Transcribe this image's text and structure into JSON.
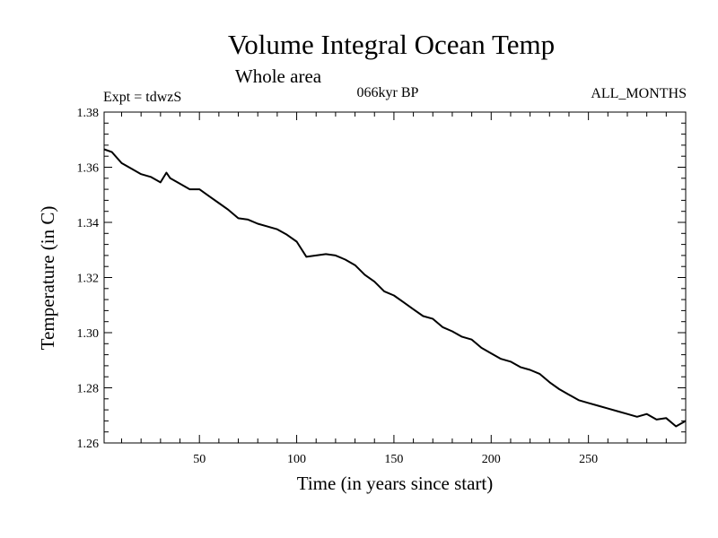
{
  "chart_data": {
    "type": "line",
    "title": "Volume Integral Ocean Temp",
    "subtitle": "Whole area",
    "annotations": {
      "left": "Expt = tdwzS",
      "center": "066kyr BP",
      "right": "ALL_MONTHS"
    },
    "xlabel": "Time (in years since start)",
    "ylabel": "Temperature (in C)",
    "xlim": [
      1,
      300
    ],
    "ylim": [
      1.26,
      1.38
    ],
    "x_ticks": [
      50,
      100,
      150,
      200,
      250
    ],
    "y_ticks": [
      "1.26",
      "1.28",
      "1.30",
      "1.32",
      "1.34",
      "1.36",
      "1.38"
    ],
    "grid": false,
    "legend": "none",
    "line_color": "#000000",
    "series": [
      {
        "x": [
          1,
          5,
          10,
          15,
          20,
          25,
          30,
          33,
          35,
          40,
          45,
          50,
          55,
          60,
          65,
          70,
          75,
          80,
          85,
          90,
          95,
          100,
          105,
          110,
          115,
          120,
          125,
          130,
          135,
          140,
          145,
          150,
          155,
          160,
          165,
          170,
          175,
          180,
          185,
          190,
          195,
          200,
          205,
          210,
          215,
          220,
          225,
          230,
          235,
          240,
          245,
          250,
          255,
          260,
          265,
          270,
          275,
          280,
          285,
          290,
          295,
          300
        ],
        "values": [
          1.3665,
          1.3655,
          1.3615,
          1.3595,
          1.3575,
          1.3565,
          1.3545,
          1.358,
          1.356,
          1.354,
          1.352,
          1.352,
          1.3495,
          1.347,
          1.3445,
          1.3415,
          1.341,
          1.3395,
          1.3385,
          1.3375,
          1.3355,
          1.333,
          1.3275,
          1.328,
          1.3285,
          1.328,
          1.3265,
          1.3245,
          1.321,
          1.3185,
          1.315,
          1.3135,
          1.311,
          1.3085,
          1.306,
          1.305,
          1.302,
          1.3005,
          1.2985,
          1.2975,
          1.2945,
          1.2925,
          1.2905,
          1.2895,
          1.2875,
          1.2865,
          1.285,
          1.282,
          1.2795,
          1.2775,
          1.2755,
          1.2745,
          1.2735,
          1.2725,
          1.2715,
          1.2705,
          1.2695,
          1.2705,
          1.2685,
          1.269,
          1.266,
          1.268
        ]
      }
    ]
  }
}
